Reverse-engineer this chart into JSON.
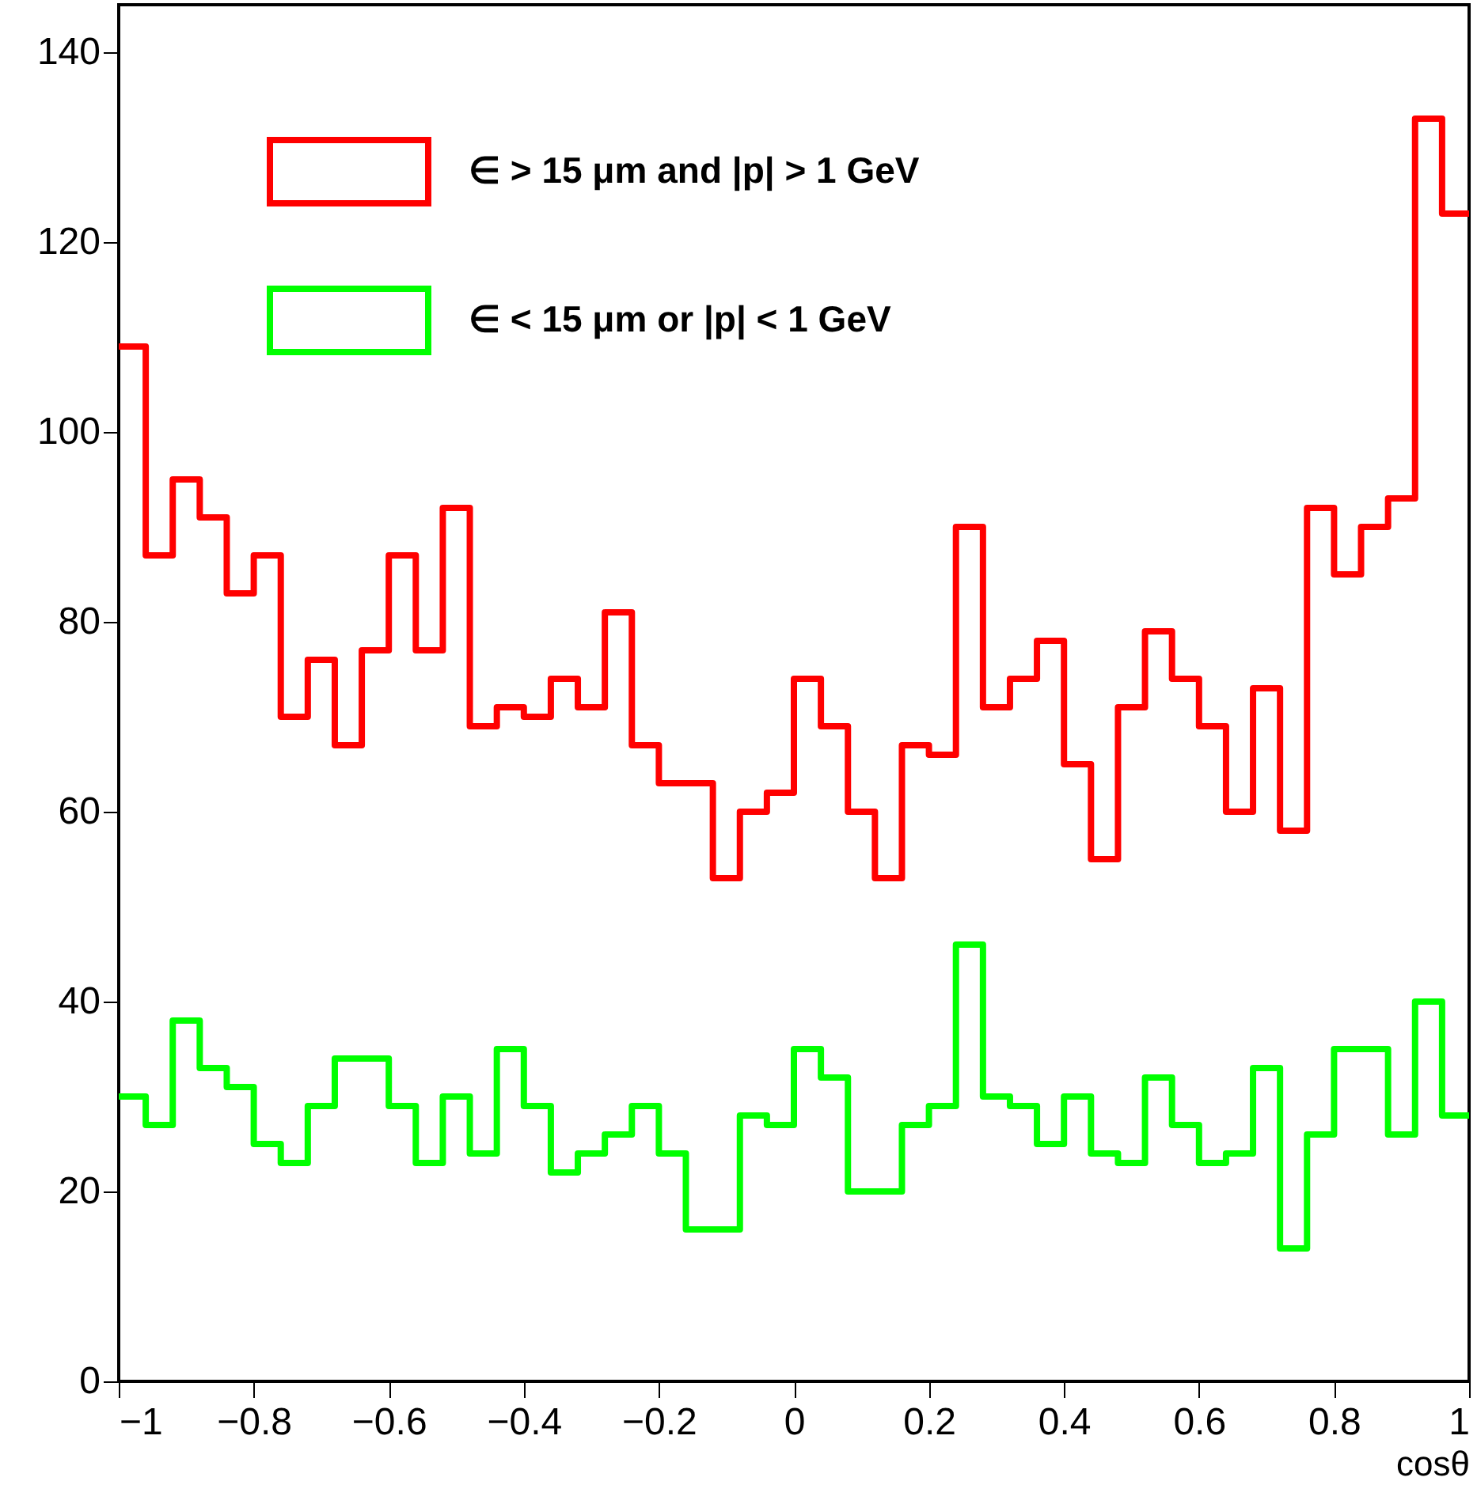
{
  "chart_data": {
    "type": "histogram",
    "xlabel": "cosθ",
    "bins": [
      -1,
      -0.96,
      -0.92,
      -0.88,
      -0.84,
      -0.8,
      -0.76,
      -0.72,
      -0.68,
      -0.64,
      -0.6,
      -0.56,
      -0.52,
      -0.48,
      -0.44,
      -0.4,
      -0.36,
      -0.32,
      -0.28,
      -0.24,
      -0.2,
      -0.16,
      -0.12,
      -0.08,
      -0.04,
      0,
      0.04,
      0.08,
      0.12,
      0.16,
      0.2,
      0.24,
      0.28,
      0.32,
      0.36,
      0.4,
      0.44,
      0.48,
      0.52,
      0.56,
      0.6,
      0.64,
      0.68,
      0.72,
      0.76,
      0.8,
      0.84,
      0.88,
      0.92,
      0.96,
      1
    ],
    "series": [
      {
        "name": "∈ > 15  μm and |p| > 1 GeV",
        "color": "#ff0000",
        "values": [
          109,
          87,
          95,
          91,
          83,
          87,
          70,
          76,
          67,
          77,
          87,
          77,
          92,
          69,
          71,
          70,
          74,
          71,
          81,
          67,
          63,
          63,
          53,
          60,
          62,
          74,
          69,
          60,
          53,
          67,
          66,
          90,
          71,
          74,
          78,
          65,
          55,
          71,
          79,
          74,
          69,
          60,
          73,
          58,
          92,
          85,
          90,
          93,
          133,
          123
        ]
      },
      {
        "name": "∈ < 15  μm or |p| < 1 GeV",
        "color": "#00ff00",
        "values": [
          30,
          27,
          38,
          33,
          31,
          25,
          23,
          29,
          34,
          34,
          29,
          23,
          30,
          24,
          35,
          29,
          22,
          24,
          26,
          29,
          24,
          16,
          16,
          28,
          27,
          35,
          32,
          20,
          20,
          27,
          29,
          46,
          30,
          29,
          25,
          30,
          24,
          23,
          32,
          27,
          23,
          24,
          33,
          14,
          26,
          35,
          35,
          26,
          40,
          28
        ]
      }
    ],
    "xlim": [
      -1,
      1
    ],
    "xticks": [
      -1,
      -0.8,
      -0.6,
      -0.4,
      -0.2,
      0,
      0.2,
      0.4,
      0.6,
      0.8,
      1
    ],
    "ylim": [
      0,
      145
    ],
    "yticks": [
      0,
      20,
      40,
      60,
      80,
      100,
      120,
      140
    ],
    "grid": false,
    "legend": "top left"
  }
}
